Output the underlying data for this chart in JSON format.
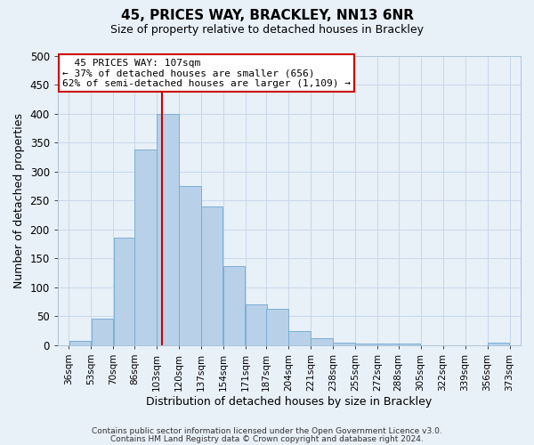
{
  "title": "45, PRICES WAY, BRACKLEY, NN13 6NR",
  "subtitle": "Size of property relative to detached houses in Brackley",
  "xlabel": "Distribution of detached houses by size in Brackley",
  "ylabel": "Number of detached properties",
  "bar_left_edges": [
    36,
    53,
    70,
    86,
    103,
    120,
    137,
    154,
    171,
    187,
    204,
    221,
    238,
    255,
    272,
    288,
    305,
    322,
    339,
    356
  ],
  "bar_heights": [
    8,
    46,
    185,
    338,
    400,
    275,
    240,
    136,
    70,
    62,
    25,
    12,
    5,
    3,
    2,
    2,
    0,
    0,
    0,
    4
  ],
  "bin_width": 17,
  "bar_color": "#b8d0e8",
  "bar_edge_color": "#7aafd4",
  "tick_labels": [
    "36sqm",
    "53sqm",
    "70sqm",
    "86sqm",
    "103sqm",
    "120sqm",
    "137sqm",
    "154sqm",
    "171sqm",
    "187sqm",
    "204sqm",
    "221sqm",
    "238sqm",
    "255sqm",
    "272sqm",
    "288sqm",
    "305sqm",
    "322sqm",
    "339sqm",
    "356sqm",
    "373sqm"
  ],
  "tick_positions": [
    36,
    53,
    70,
    86,
    103,
    120,
    137,
    154,
    171,
    187,
    204,
    221,
    238,
    255,
    272,
    288,
    305,
    322,
    339,
    356,
    373
  ],
  "vline_x": 107,
  "vline_color": "#cc0000",
  "ylim": [
    0,
    500
  ],
  "yticks": [
    0,
    50,
    100,
    150,
    200,
    250,
    300,
    350,
    400,
    450,
    500
  ],
  "annotation_title": "45 PRICES WAY: 107sqm",
  "annotation_line1": "← 37% of detached houses are smaller (656)",
  "annotation_line2": "62% of semi-detached houses are larger (1,109) →",
  "annotation_box_facecolor": "#ffffff",
  "annotation_box_edgecolor": "#cc0000",
  "grid_color": "#c8d8ea",
  "bg_color": "#e8f0f8",
  "plot_bg_color": "#e8f0f8",
  "footer_line1": "Contains HM Land Registry data © Crown copyright and database right 2024.",
  "footer_line2": "Contains public sector information licensed under the Open Government Licence v3.0.",
  "title_fontsize": 11,
  "subtitle_fontsize": 9,
  "ylabel_fontsize": 9,
  "xlabel_fontsize": 9,
  "annot_fontsize": 8,
  "footer_fontsize": 6.5,
  "ytick_fontsize": 8.5,
  "xtick_fontsize": 7.5
}
